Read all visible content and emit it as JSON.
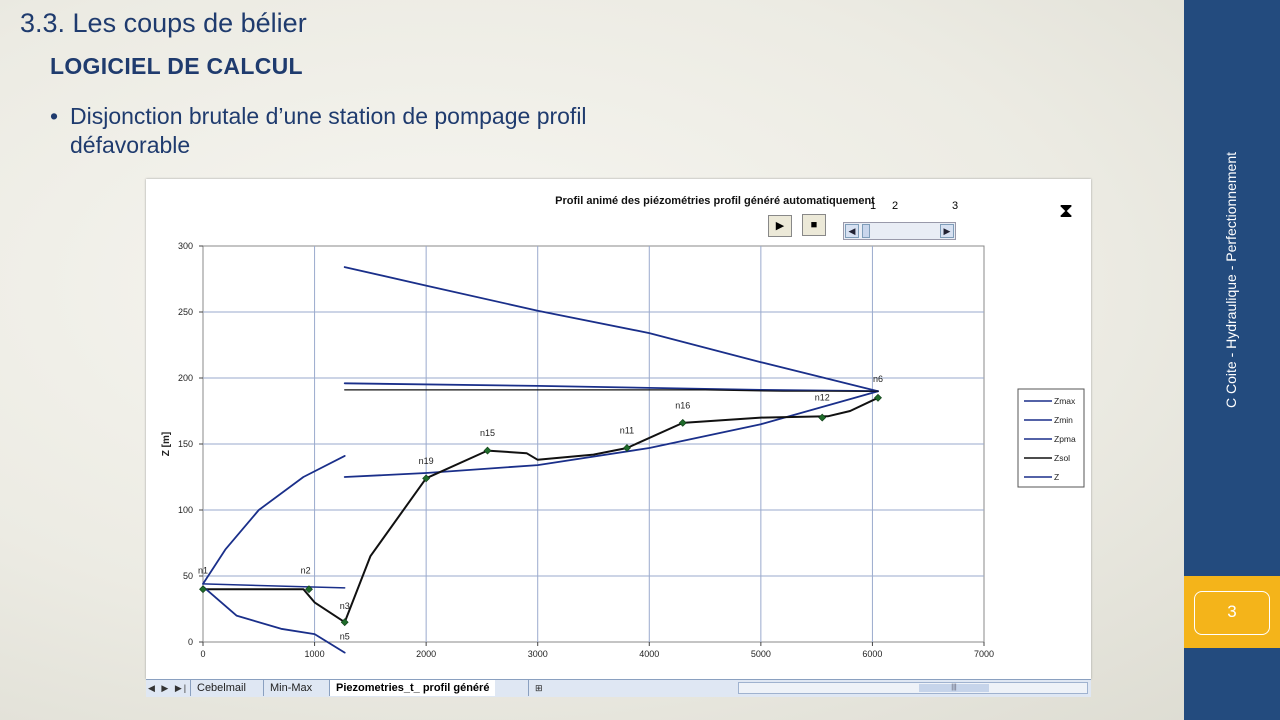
{
  "slide": {
    "title": "3.3. Les coups de bélier",
    "subheading": "LOGICIEL DE CALCUL",
    "bullet": "Disjonction brutale d’une station de pompage profil défavorable",
    "side_text": "C Coite - Hydraulique - Perfectionnement",
    "page_number": "3",
    "colors": {
      "sidebar": "#234b7e",
      "accent": "#f4b41a",
      "text": "#1f3b6e"
    }
  },
  "controls": {
    "play_icon": "play-icon",
    "stop_icon": "stop-icon",
    "scroll_labels": [
      "1",
      "2",
      "3"
    ],
    "hourglass_icon": "hourglass-icon"
  },
  "sheet_tabs": {
    "tabs": [
      "Cebelmail",
      "Min-Max",
      "Piezometries_t_ profil généré"
    ],
    "active": "Piezometries_t_ profil généré"
  },
  "chart_data": {
    "type": "line",
    "title": "Profil animé des piézométries profil généré automatiquement",
    "xlabel": "",
    "ylabel": "Z [m]",
    "xlim": [
      0,
      7000
    ],
    "ylim": [
      0,
      300
    ],
    "xticks": [
      "0",
      "1000",
      "2000",
      "3000",
      "4000",
      "5000",
      "6000",
      "7000"
    ],
    "yticks": [
      "0",
      "50",
      "100",
      "150",
      "200",
      "250",
      "300"
    ],
    "grid": true,
    "legend_position": "right",
    "series": [
      {
        "name": "Zmax",
        "color": "#1a2f8a",
        "width": 1.8,
        "points": [
          [
            1270,
            284
          ],
          [
            2000,
            270
          ],
          [
            3000,
            251
          ],
          [
            4000,
            234
          ],
          [
            5000,
            212
          ],
          [
            6050,
            190
          ]
        ]
      },
      {
        "name": "Zmin",
        "color": "#1a2f8a",
        "width": 1.8,
        "points": [
          [
            1270,
            196
          ],
          [
            3000,
            194
          ],
          [
            5000,
            191
          ],
          [
            6050,
            190
          ]
        ]
      },
      {
        "name": "Zpma",
        "color": "#1a2f8a",
        "width": 1.8,
        "points": [
          [
            1270,
            125
          ],
          [
            2000,
            128
          ],
          [
            3000,
            134
          ],
          [
            4000,
            147
          ],
          [
            5000,
            165
          ],
          [
            6050,
            190
          ]
        ]
      },
      {
        "name": "Zsol",
        "color": "#111111",
        "width": 2.0,
        "points": [
          [
            0,
            40
          ],
          [
            900,
            40
          ],
          [
            1000,
            30
          ],
          [
            1270,
            15
          ],
          [
            1500,
            65
          ],
          [
            2000,
            124
          ],
          [
            2550,
            145
          ],
          [
            2900,
            143
          ],
          [
            3000,
            138
          ],
          [
            3500,
            142
          ],
          [
            3800,
            147
          ],
          [
            4300,
            166
          ],
          [
            5000,
            170
          ],
          [
            5600,
            171
          ],
          [
            5800,
            175
          ],
          [
            6050,
            185
          ]
        ]
      },
      {
        "name": "Z",
        "color": "#1a2f8a",
        "width": 1.5,
        "points": [
          [
            0,
            44
          ],
          [
            1270,
            41
          ]
        ]
      },
      {
        "name": "",
        "color": "#1a2f8a",
        "width": 1.8,
        "points": [
          [
            0,
            44
          ],
          [
            200,
            70
          ],
          [
            500,
            100
          ],
          [
            900,
            125
          ],
          [
            1270,
            141
          ]
        ]
      },
      {
        "name": "",
        "color": "#1a2f8a",
        "width": 1.8,
        "points": [
          [
            0,
            42
          ],
          [
            300,
            20
          ],
          [
            700,
            10
          ],
          [
            1000,
            6
          ],
          [
            1270,
            -8
          ]
        ]
      },
      {
        "name": "",
        "color": "#111111",
        "width": 1.2,
        "points": [
          [
            1270,
            191
          ],
          [
            4500,
            191
          ],
          [
            5200,
            190
          ],
          [
            6050,
            190
          ]
        ]
      }
    ],
    "markers": [
      [
        0,
        40
      ],
      [
        950,
        40
      ],
      [
        1270,
        15
      ],
      [
        2000,
        124
      ],
      [
        2550,
        145
      ],
      [
        3800,
        147
      ],
      [
        4300,
        166
      ],
      [
        5550,
        170
      ],
      [
        6050,
        185
      ]
    ],
    "node_labels": [
      {
        "text": "n1",
        "x": 0,
        "y": 52
      },
      {
        "text": "n2",
        "x": 920,
        "y": 52
      },
      {
        "text": "n3",
        "x": 1270,
        "y": 25
      },
      {
        "text": "n5",
        "x": 1270,
        "y": 2
      },
      {
        "text": "n19",
        "x": 2000,
        "y": 135
      },
      {
        "text": "n15",
        "x": 2550,
        "y": 156
      },
      {
        "text": "n11",
        "x": 3800,
        "y": 158
      },
      {
        "text": "n16",
        "x": 4300,
        "y": 177
      },
      {
        "text": "n12",
        "x": 5550,
        "y": 183
      },
      {
        "text": "n6",
        "x": 6050,
        "y": 197
      }
    ]
  }
}
